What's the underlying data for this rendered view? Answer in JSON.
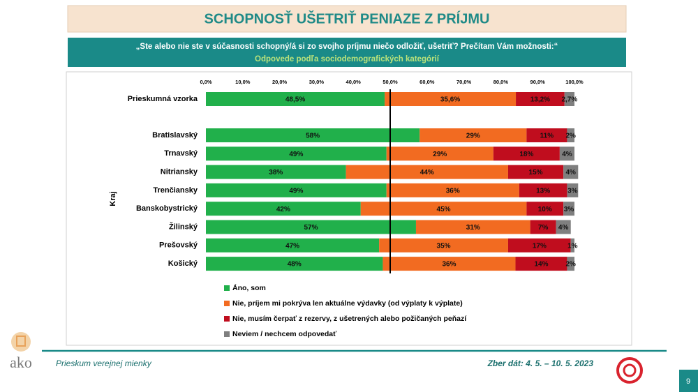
{
  "header": {
    "title": "SCHOPNOSŤ UŠETRIŤ PENIAZE Z PRÍJMU",
    "question": "„Ste alebo nie ste v súčasnosti schopný/á si zo svojho príjmu niečo odložiť, ušetriť? Prečítam Vám možnosti:“",
    "subtitle": "Odpovede podľa sociodemografických kategórií"
  },
  "footer": {
    "left": "Prieskum verejnej mienky",
    "right": "Zber dát: 4. 5. – 10. 5. 2023",
    "page": "9",
    "logo": "ako"
  },
  "chart_data": {
    "type": "stacked-hbar",
    "y_label": "Kraj",
    "categories": [
      "Prieskumná vzorka",
      "Bratislavský",
      "Trnavský",
      "Nitriansky",
      "Trenčiansky",
      "Banskobystrický",
      "Žilinský",
      "Prešovský",
      "Košický"
    ],
    "xlim": [
      0,
      100
    ],
    "xticks": [
      {
        "value": 0,
        "label": "0,0%"
      },
      {
        "value": 10,
        "label": "10,0%"
      },
      {
        "value": 20,
        "label": "20,0%"
      },
      {
        "value": 30,
        "label": "30,0%"
      },
      {
        "value": 40,
        "label": "40,0%"
      },
      {
        "value": 50,
        "label": "50,0%"
      },
      {
        "value": 60,
        "label": "60,0%"
      },
      {
        "value": 70,
        "label": "70,0%"
      },
      {
        "value": 80,
        "label": "80,0%"
      },
      {
        "value": 90,
        "label": "90,0%"
      },
      {
        "value": 100,
        "label": "100,0%"
      }
    ],
    "reference_line": 50,
    "series": [
      {
        "name": "Áno, som",
        "color": "#21b04b",
        "values": [
          48.5,
          58,
          49,
          38,
          49,
          42,
          57,
          47,
          48
        ],
        "value_labels": [
          "48,5%",
          "58%",
          "49%",
          "38%",
          "49%",
          "42%",
          "57%",
          "47%",
          "48%"
        ]
      },
      {
        "name": "Nie, príjem mi pokrýva len aktuálne výdavky (od výplaty k výplate)",
        "color": "#f26b21",
        "values": [
          35.6,
          29,
          29,
          44,
          36,
          45,
          31,
          35,
          36
        ],
        "value_labels": [
          "35,6%",
          "29%",
          "29%",
          "44%",
          "36%",
          "45%",
          "31%",
          "35%",
          "36%"
        ]
      },
      {
        "name": "Nie, musím čerpať z rezervy, z ušetrených alebo požičaných peňazí",
        "color": "#c00d1e",
        "values": [
          13.2,
          11,
          18,
          15,
          13,
          10,
          7,
          17,
          14
        ],
        "value_labels": [
          "13,2%",
          "11%",
          "18%",
          "15%",
          "13%",
          "10%",
          "7%",
          "17%",
          "14%"
        ]
      },
      {
        "name": "Neviem / nechcem odpovedať",
        "color": "#7f7f7f",
        "values": [
          2.7,
          2,
          4,
          4,
          3,
          3,
          4,
          1,
          2
        ],
        "value_labels": [
          "2,7%",
          "2%",
          "4%",
          "4%",
          "3%",
          "3%",
          "4%",
          "1%",
          "2%"
        ]
      }
    ]
  }
}
